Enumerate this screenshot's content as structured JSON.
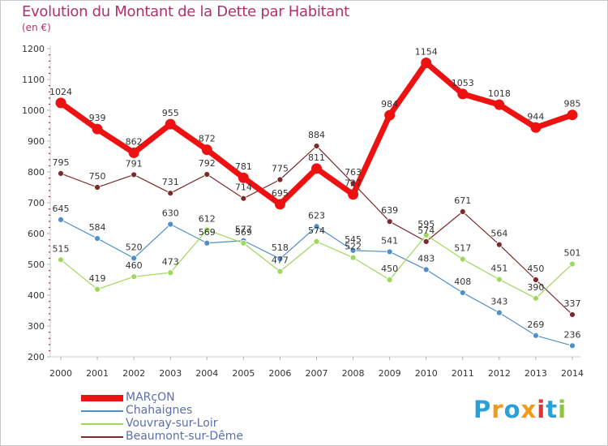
{
  "header": {
    "title": "Evolution du Montant de la Dette par Habitant",
    "unit": "(en €)"
  },
  "logo": {
    "text": "Proxiti",
    "letters": [
      "P",
      "r",
      "o",
      "x",
      "i",
      "t",
      "i"
    ],
    "colors": [
      "#2aa0d8",
      "#f39a1c",
      "#2aa0d8",
      "#f39a1c",
      "#e5322d",
      "#2aa0d8",
      "#8cc63f"
    ]
  },
  "chart_data": {
    "type": "line",
    "x": [
      "2000",
      "2001",
      "2002",
      "2003",
      "2004",
      "2005",
      "2006",
      "2007",
      "2008",
      "2009",
      "2010",
      "2011",
      "2012",
      "2013",
      "2014"
    ],
    "ylim": [
      200,
      1200
    ],
    "yticks": [
      200,
      300,
      400,
      500,
      600,
      700,
      800,
      900,
      1000,
      1100,
      1200
    ],
    "grid": false,
    "legend_position": "bottom-left",
    "series": [
      {
        "name": "MARçON",
        "color": "#ee1111",
        "line_width": 7,
        "marker_radius": 6.5,
        "values": [
          1024,
          939,
          862,
          955,
          872,
          781,
          695,
          811,
          727,
          984,
          1154,
          1053,
          1018,
          944,
          985
        ],
        "labels": [
          "1024",
          "939",
          "862",
          "955",
          "872",
          "781",
          "695",
          "811",
          "727",
          "984",
          "1154",
          "1053",
          "1018",
          "944",
          "985"
        ]
      },
      {
        "name": "Chahaignes",
        "color": "#4d8fcc",
        "line_width": 1.2,
        "marker_radius": 3.5,
        "values": [
          645,
          584,
          520,
          630,
          569,
          577,
          518,
          623,
          545,
          541,
          483,
          408,
          343,
          269,
          236
        ],
        "labels": [
          "645",
          "584",
          "520",
          "630",
          "569",
          "577",
          "518",
          "623",
          "545",
          "541",
          "483",
          "408",
          "343",
          "269",
          "236"
        ]
      },
      {
        "name": "Vouvray-sur-Loir",
        "color": "#9ed85a",
        "line_width": 1.2,
        "marker_radius": 3.5,
        "values": [
          515,
          419,
          460,
          473,
          612,
          569,
          477,
          574,
          522,
          450,
          595,
          517,
          451,
          390,
          501
        ],
        "labels": [
          "515",
          "419",
          "460",
          "473",
          "612",
          "569",
          "477",
          "574",
          "522",
          "450",
          "595",
          "517",
          "451",
          "390",
          "501"
        ]
      },
      {
        "name": "Beaumont-sur-Dême",
        "color": "#7b2a2a",
        "line_width": 1.2,
        "marker_radius": 3.5,
        "values": [
          795,
          750,
          791,
          731,
          792,
          714,
          775,
          884,
          763,
          639,
          574,
          671,
          564,
          450,
          337
        ],
        "labels": [
          "795",
          "750",
          "791",
          "731",
          "792",
          "714",
          "775",
          "884",
          "763",
          "639",
          "574",
          "671",
          "564",
          "450",
          "337"
        ]
      }
    ]
  }
}
